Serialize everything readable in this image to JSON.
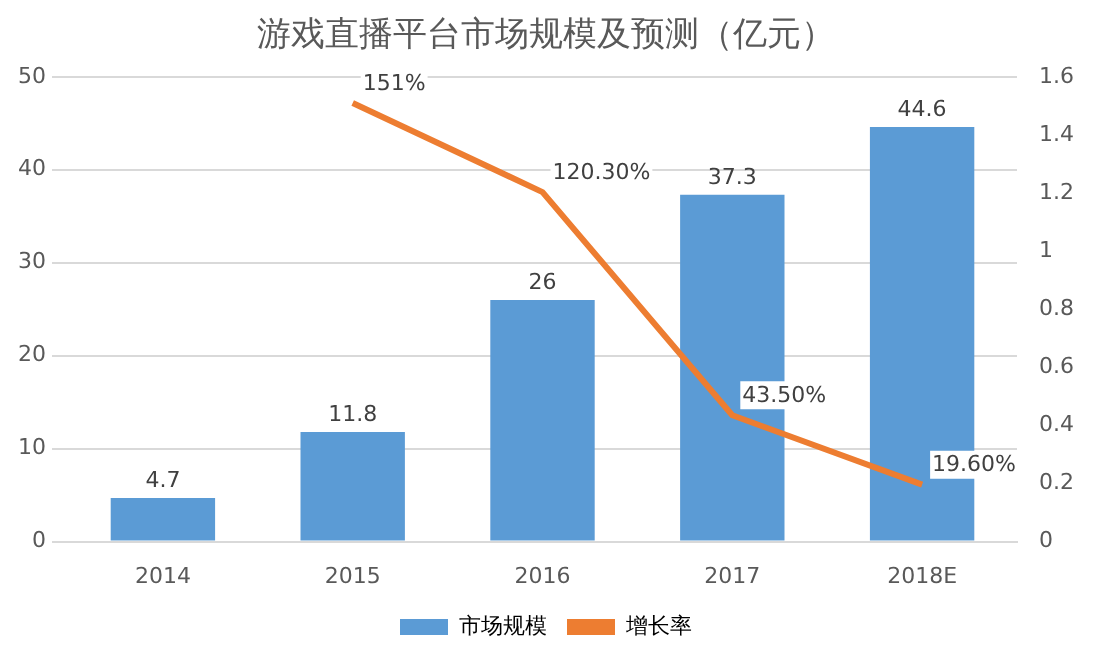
{
  "chart_data": {
    "type": "bar",
    "title": "游戏直播平台市场规模及预测（亿元）",
    "categories": [
      "2014",
      "2015",
      "2016",
      "2017",
      "2018E"
    ],
    "series": [
      {
        "name": "市场规模",
        "color": "#5b9bd5",
        "values": [
          4.7,
          11.8,
          26,
          37.3,
          44.6
        ],
        "value_labels": [
          "4.7",
          "11.8",
          "26",
          "37.3",
          "44.6"
        ]
      },
      {
        "name": "增长率",
        "type": "line",
        "axis": "y2",
        "color": "#ed7d31",
        "values": [
          null,
          1.51,
          1.203,
          0.435,
          0.196
        ],
        "value_labels": [
          null,
          "151%",
          "120.30%",
          "43.50%",
          "19.60%"
        ]
      }
    ],
    "ylim": [
      0,
      50
    ],
    "yticks": [
      0,
      10,
      20,
      30,
      40,
      50
    ],
    "y2lim": [
      0,
      1.6
    ],
    "y2ticks": [
      0,
      0.2,
      0.4,
      0.6,
      0.8,
      1,
      1.2,
      1.4,
      1.6
    ],
    "grid": "y",
    "legend": "bottom",
    "marker": "none"
  }
}
